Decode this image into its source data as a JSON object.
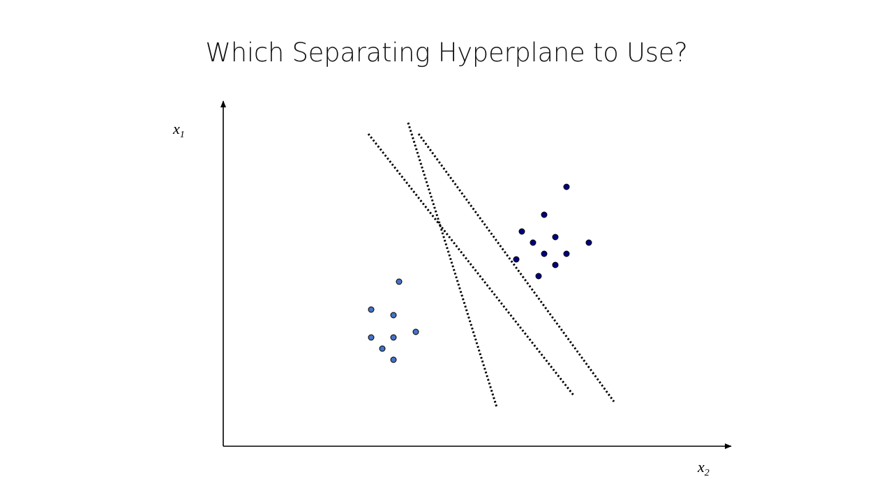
{
  "slide": {
    "title": "Which Separating Hyperplane to Use?"
  },
  "axes": {
    "y_label": {
      "base": "x",
      "sub": "1"
    },
    "x_label": {
      "base": "x",
      "sub": "2"
    }
  },
  "colors": {
    "axis": "#000000",
    "hyperplane": "#000000",
    "class_a_fill": "#4472c4",
    "class_b_fill": "#000080",
    "point_stroke": "#000000"
  }
}
